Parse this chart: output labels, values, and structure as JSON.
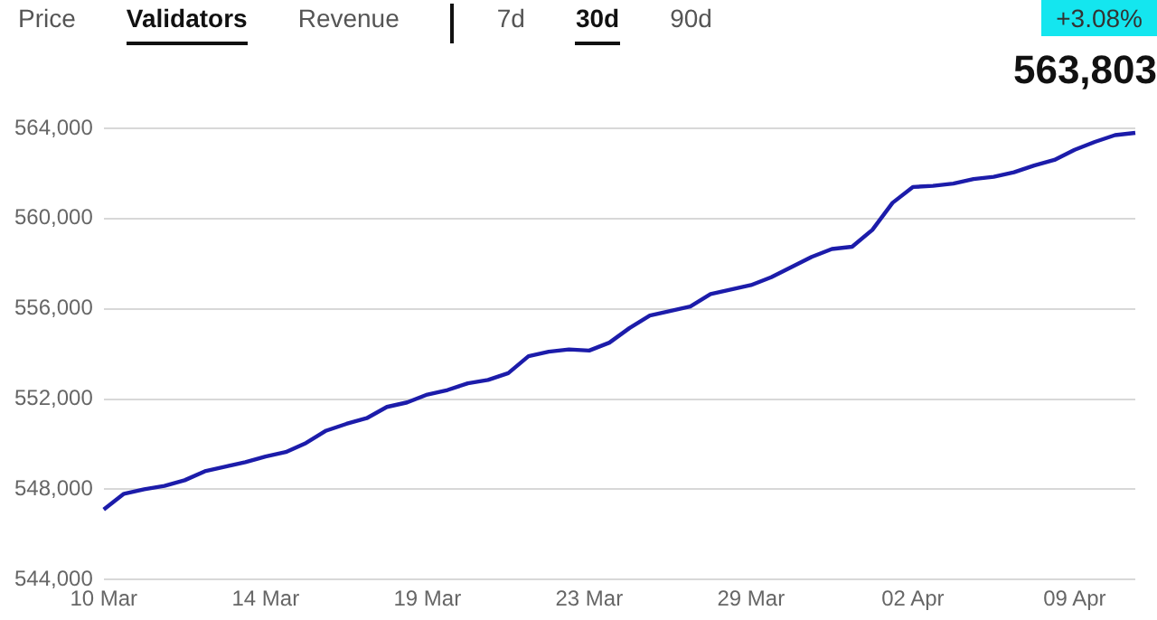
{
  "chart_data": {
    "type": "line",
    "title": "563,803",
    "subtitle": "+3.08%",
    "annotations": [
      "Price",
      "Validators",
      "Revenue",
      "7d",
      "30d",
      "90d"
    ],
    "categories": [
      "10 Mar",
      null,
      null,
      null,
      null,
      null,
      null,
      null,
      "14 Mar",
      null,
      null,
      null,
      null,
      null,
      null,
      null,
      "19 Mar",
      null,
      null,
      null,
      null,
      null,
      null,
      null,
      "23 Mar",
      null,
      null,
      null,
      null,
      null,
      null,
      null,
      "29 Mar",
      null,
      null,
      null,
      null,
      null,
      null,
      null,
      "02 Apr",
      null,
      null,
      null,
      null,
      null,
      null,
      null,
      "09 Apr",
      null,
      null,
      null
    ],
    "series": [
      {
        "color": "#1c1caa",
        "values": [
          547100,
          547800,
          548000,
          548150,
          548400,
          548800,
          549000,
          549200,
          549450,
          549650,
          550050,
          550600,
          550900,
          551150,
          551650,
          551850,
          552200,
          552400,
          552700,
          552850,
          553150,
          553900,
          554100,
          554200,
          554150,
          554500,
          555150,
          555700,
          555900,
          556100,
          556650,
          556850,
          557050,
          557400,
          557850,
          558300,
          558650,
          558750,
          559500,
          560700,
          561400,
          561450,
          561550,
          561750,
          561850,
          562050,
          562350,
          562600,
          563050,
          563400,
          563700,
          563800
        ]
      }
    ],
    "ylim": [
      544000,
      564000
    ],
    "yticks": [
      {
        "value": 544000,
        "label": "544,000"
      },
      {
        "value": 548000,
        "label": "548,000"
      },
      {
        "value": 552000,
        "label": "552,000"
      },
      {
        "value": 556000,
        "label": "556,000"
      },
      {
        "value": 560000,
        "label": "560,000"
      },
      {
        "value": 564000,
        "label": "564,000"
      }
    ],
    "grid": "y",
    "legend": false,
    "marker": "none",
    "line_style": "solid"
  }
}
